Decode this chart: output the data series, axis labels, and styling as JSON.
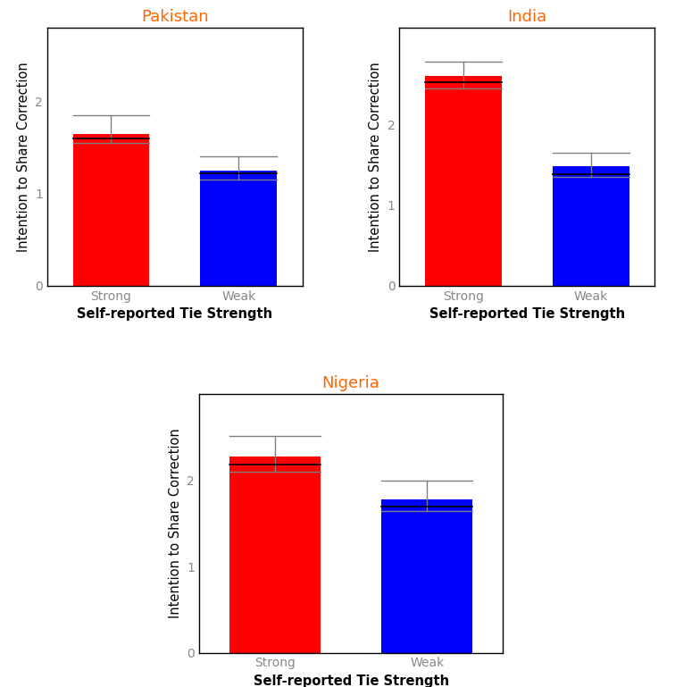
{
  "panels": [
    {
      "title": "Pakistan",
      "categories": [
        "Strong",
        "Weak"
      ],
      "means": [
        1.65,
        1.25
      ],
      "medians": [
        1.6,
        1.22
      ],
      "ci_low": [
        1.55,
        1.15
      ],
      "ci_high": [
        1.85,
        1.4
      ],
      "colors": [
        "#FF0000",
        "#0000FF"
      ],
      "ylim": [
        0,
        2.8
      ],
      "yticks": [
        0,
        1,
        2
      ]
    },
    {
      "title": "India",
      "categories": [
        "Strong",
        "Weak"
      ],
      "means": [
        2.6,
        1.48
      ],
      "medians": [
        2.52,
        1.38
      ],
      "ci_low": [
        2.45,
        1.35
      ],
      "ci_high": [
        2.78,
        1.65
      ],
      "colors": [
        "#FF0000",
        "#0000FF"
      ],
      "ylim": [
        0,
        3.2
      ],
      "yticks": [
        0,
        1,
        2
      ]
    },
    {
      "title": "Nigeria",
      "categories": [
        "Strong",
        "Weak"
      ],
      "means": [
        2.28,
        1.78
      ],
      "medians": [
        2.18,
        1.7
      ],
      "ci_low": [
        2.1,
        1.65
      ],
      "ci_high": [
        2.52,
        2.0
      ],
      "colors": [
        "#FF0000",
        "#0000FF"
      ],
      "ylim": [
        0,
        3.0
      ],
      "yticks": [
        0,
        1,
        2
      ]
    }
  ],
  "xlabel": "Self-reported Tie Strength",
  "ylabel": "Intention to Share Correction",
  "title_color": "#FF6600",
  "axis_label_color": "#000000",
  "tick_label_color": "#888888",
  "background_color": "#FFFFFF",
  "plot_bg_color": "#FFFFFF",
  "bar_width": 0.6,
  "title_fontsize": 13,
  "axis_label_fontsize": 10.5,
  "tick_fontsize": 10
}
